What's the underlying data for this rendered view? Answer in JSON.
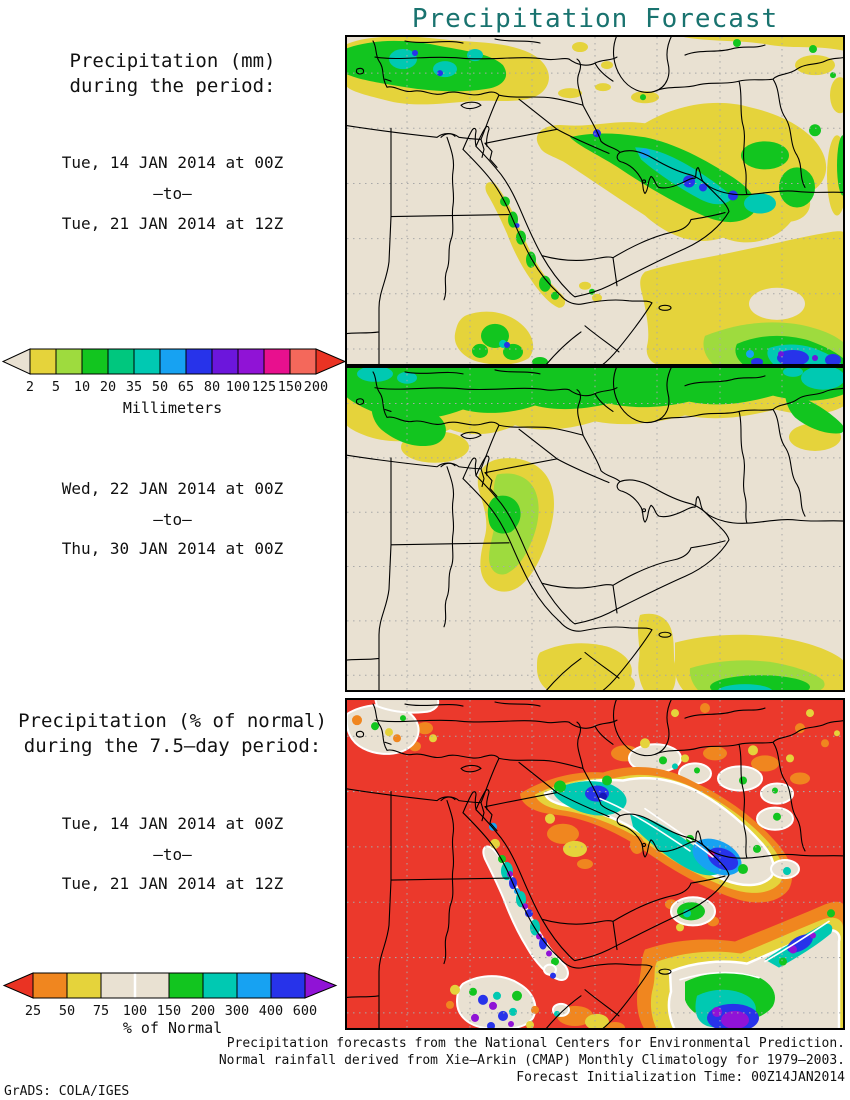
{
  "title": "Precipitation Forecast",
  "panel_mm": {
    "heading_line1": "Precipitation (mm)",
    "heading_line2": "during the period:",
    "period1": {
      "from": "Tue, 14 JAN 2014 at 00Z",
      "sep": "–to–",
      "to": "Tue, 21 JAN 2014 at 12Z"
    },
    "period2": {
      "from": "Wed, 22 JAN 2014 at 00Z",
      "sep": "–to–",
      "to": "Thu, 30 JAN 2014 at 00Z"
    }
  },
  "panel_pct": {
    "heading_line1": "Precipitation (% of normal)",
    "heading_line2": "during the 7.5–day period:",
    "period": {
      "from": "Tue, 14 JAN 2014 at 00Z",
      "sep": "–to–",
      "to": "Tue, 21 JAN 2014 at 12Z"
    }
  },
  "colorbars": {
    "mm": {
      "unit_label": "Millimeters",
      "ticks": [
        "2",
        "5",
        "10",
        "20",
        "35",
        "50",
        "65",
        "80",
        "100",
        "125",
        "150",
        "200"
      ],
      "below_color": "#E9E1D2",
      "colors": [
        "#E5D33B",
        "#9EDB3E",
        "#12C51F",
        "#00C77E",
        "#00C9B2",
        "#17A2F2",
        "#2733EA",
        "#6C16DC",
        "#9013D6",
        "#E8108E",
        "#F4685B"
      ],
      "above_color": "#EA3323"
    },
    "pct": {
      "unit_label": "% of Normal",
      "ticks": [
        "25",
        "50",
        "75",
        "100",
        "150",
        "200",
        "300",
        "400",
        "600"
      ],
      "below_color": "#EA3323",
      "colors": [
        "#F0861F",
        "#E5D33B",
        "#E9E1D2",
        "#E9E1D2",
        "#12C51F",
        "#00C9B2",
        "#17A2F2",
        "#2733EA"
      ],
      "above_color": "#9013D6",
      "white_divider_tick_index": 3
    }
  },
  "footer": {
    "line1": "Precipitation forecasts from the National Centers for Environmental Prediction.",
    "line2": "Normal rainfall derived from Xie–Arkin (CMAP) Monthly Climatology for 1979–2003.",
    "line3": "Forecast Initialization Time: 00Z14JAN2014"
  },
  "credit": "GrADS: COLA/IGES",
  "map_colors": {
    "land": "#E9E1D2",
    "grid_dots": "#A8A8A8",
    "outline": "#000000",
    "pct_background": "#EB392C",
    "title_color": "#19736f"
  }
}
